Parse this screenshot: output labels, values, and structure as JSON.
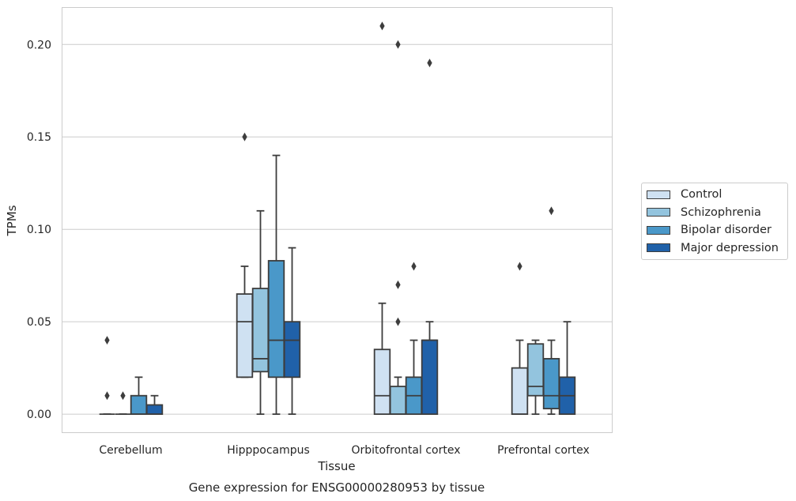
{
  "chart_data": {
    "type": "box",
    "title": "",
    "caption": "Gene expression for ENSG00000280953 by tissue",
    "xlabel": "Tissue",
    "ylabel": "TPMs",
    "ylim": [
      -0.01,
      0.22
    ],
    "yticks": [
      0.0,
      0.05,
      0.1,
      0.15,
      0.2
    ],
    "ytick_labels": [
      "0.00",
      "0.05",
      "0.10",
      "0.15",
      "0.20"
    ],
    "grid": "horizontal",
    "legend_position": "outside-right",
    "categories": [
      "Cerebellum",
      "Hipppocampus",
      "Orbitofrontal cortex",
      "Prefrontal cortex"
    ],
    "series": [
      {
        "name": "Control",
        "color": "#cfe1f2",
        "boxes": [
          {
            "whislo": 0,
            "q1": 0,
            "med": 0,
            "q3": 0,
            "whishi": 0,
            "fliers": [
              0.01,
              0.04
            ]
          },
          {
            "whislo": 0.02,
            "q1": 0.02,
            "med": 0.05,
            "q3": 0.065,
            "whishi": 0.08,
            "fliers": [
              0.15
            ]
          },
          {
            "whislo": 0,
            "q1": 0,
            "med": 0.01,
            "q3": 0.035,
            "whishi": 0.06,
            "fliers": [
              0.21
            ]
          },
          {
            "whislo": 0,
            "q1": 0,
            "med": 0,
            "q3": 0.025,
            "whishi": 0.04,
            "fliers": [
              0.08
            ]
          }
        ]
      },
      {
        "name": "Schizophrenia",
        "color": "#93c4de",
        "boxes": [
          {
            "whislo": 0,
            "q1": 0,
            "med": 0,
            "q3": 0,
            "whishi": 0,
            "fliers": [
              0.01
            ]
          },
          {
            "whislo": 0,
            "q1": 0.023,
            "med": 0.03,
            "q3": 0.068,
            "whishi": 0.11,
            "fliers": []
          },
          {
            "whislo": 0,
            "q1": 0,
            "med": 0,
            "q3": 0.015,
            "whishi": 0.02,
            "fliers": [
              0.05,
              0.07,
              0.2
            ]
          },
          {
            "whislo": 0,
            "q1": 0.01,
            "med": 0.015,
            "q3": 0.038,
            "whishi": 0.04,
            "fliers": []
          }
        ]
      },
      {
        "name": "Bipolar disorder",
        "color": "#4a98c9",
        "boxes": [
          {
            "whislo": 0,
            "q1": 0,
            "med": 0,
            "q3": 0.01,
            "whishi": 0.02,
            "fliers": []
          },
          {
            "whislo": 0,
            "q1": 0.02,
            "med": 0.04,
            "q3": 0.083,
            "whishi": 0.14,
            "fliers": []
          },
          {
            "whislo": 0,
            "q1": 0,
            "med": 0.01,
            "q3": 0.02,
            "whishi": 0.04,
            "fliers": [
              0.08
            ]
          },
          {
            "whislo": 0,
            "q1": 0.003,
            "med": 0.01,
            "q3": 0.03,
            "whishi": 0.04,
            "fliers": [
              0.11
            ]
          }
        ]
      },
      {
        "name": "Major depression",
        "color": "#2061a9",
        "boxes": [
          {
            "whislo": 0,
            "q1": 0,
            "med": 0,
            "q3": 0.005,
            "whishi": 0.01,
            "fliers": []
          },
          {
            "whislo": 0,
            "q1": 0.02,
            "med": 0.04,
            "q3": 0.05,
            "whishi": 0.09,
            "fliers": []
          },
          {
            "whislo": 0,
            "q1": 0,
            "med": 0.04,
            "q3": 0.04,
            "whishi": 0.05,
            "fliers": [
              0.19
            ]
          },
          {
            "whislo": 0,
            "q1": 0,
            "med": 0.01,
            "q3": 0.02,
            "whishi": 0.05,
            "fliers": []
          }
        ]
      }
    ]
  },
  "style": {
    "line_color": "#3d3d3d",
    "grid_color": "#cccccc",
    "frame_color": "#cccccc"
  }
}
